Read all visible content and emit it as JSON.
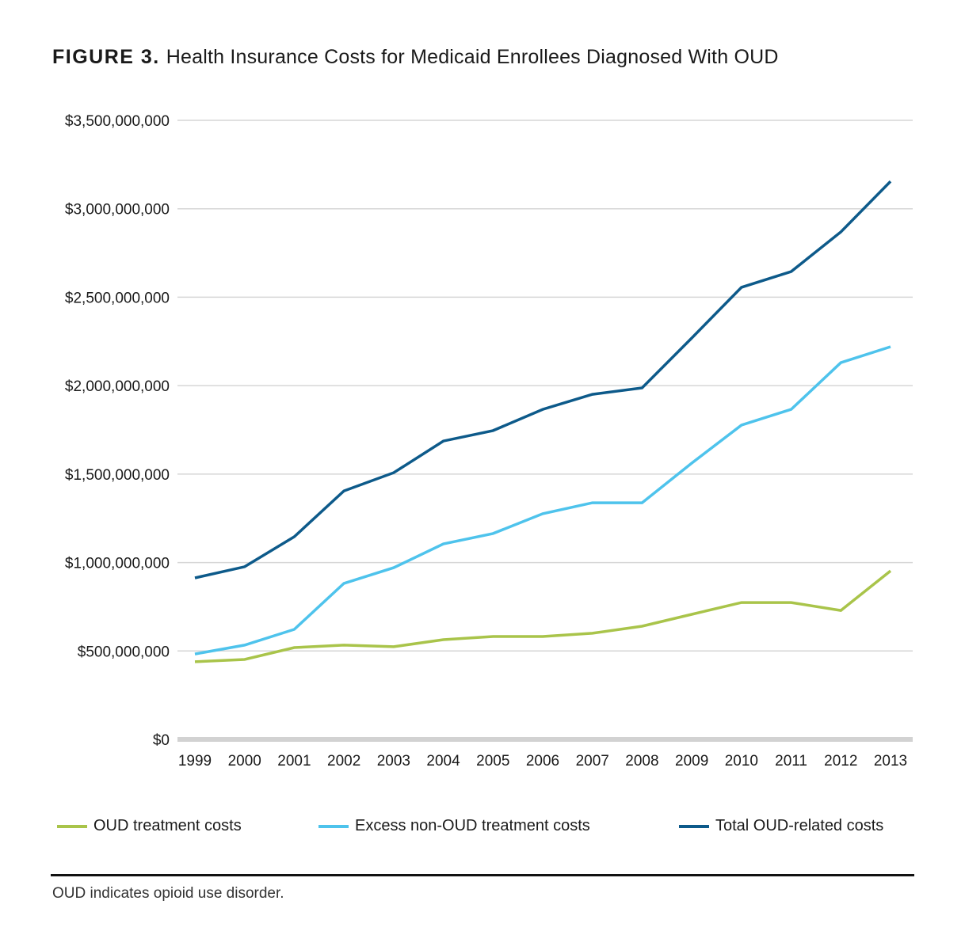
{
  "header": {
    "figure_label": "FIGURE 3.",
    "title": "Health Insurance Costs for Medicaid Enrollees Diagnosed With OUD"
  },
  "chart_data": {
    "type": "line",
    "title": "Health Insurance Costs for Medicaid Enrollees Diagnosed With OUD",
    "xlabel": "",
    "ylabel": "",
    "x": [
      "1999",
      "2000",
      "2001",
      "2002",
      "2003",
      "2004",
      "2005",
      "2006",
      "2007",
      "2008",
      "2009",
      "2010",
      "2011",
      "2012",
      "2013"
    ],
    "ylim": [
      0,
      3500000000
    ],
    "yticks": [
      0,
      500000000,
      1000000000,
      1500000000,
      2000000000,
      2500000000,
      3000000000,
      3500000000
    ],
    "ytick_labels": [
      "$0",
      "$500,000,000",
      "$1,000,000,000",
      "$1,500,000,000",
      "$2,000,000,000",
      "$2,500,000,000",
      "$3,000,000,000",
      "$3,500,000,000"
    ],
    "grid": true,
    "legend_position": "bottom",
    "series": [
      {
        "name": "OUD treatment costs",
        "color": "#a9c44a",
        "values": [
          439000000,
          452000000,
          519000000,
          533000000,
          524000000,
          564000000,
          582000000,
          582000000,
          600000000,
          640000000,
          707000000,
          774000000,
          774000000,
          729000000,
          953000000
        ]
      },
      {
        "name": "Excess non-OUD treatment costs",
        "color": "#4ec3ec",
        "values": [
          483000000,
          533000000,
          622000000,
          882000000,
          971000000,
          1105000000,
          1164000000,
          1276000000,
          1338000000,
          1338000000,
          1562000000,
          1777000000,
          1866000000,
          2130000000,
          2220000000
        ]
      },
      {
        "name": "Total OUD-related costs",
        "color": "#0d5a8a",
        "values": [
          913000000,
          976000000,
          1146000000,
          1405000000,
          1508000000,
          1687000000,
          1746000000,
          1866000000,
          1951000000,
          1987000000,
          2269000000,
          2556000000,
          2645000000,
          2869000000,
          3155000000
        ]
      }
    ]
  },
  "legend": {
    "items": [
      {
        "label": "OUD treatment costs",
        "color": "#a9c44a"
      },
      {
        "label": "Excess non-OUD treatment costs",
        "color": "#4ec3ec"
      },
      {
        "label": "Total OUD-related costs",
        "color": "#0d5a8a"
      }
    ]
  },
  "footnote": "OUD indicates opioid use disorder."
}
